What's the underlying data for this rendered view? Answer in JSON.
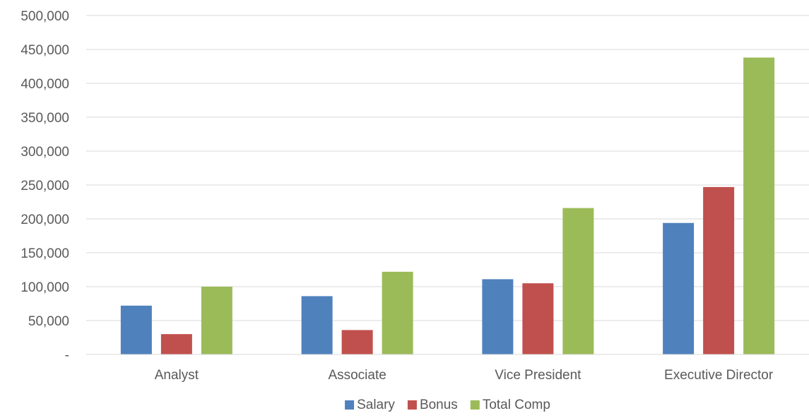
{
  "chart_data": {
    "type": "bar",
    "categories": [
      "Analyst",
      "Associate",
      "Vice President",
      "Executive Director"
    ],
    "series": [
      {
        "name": "Salary",
        "color": "#4f81bd",
        "values": [
          72000,
          86000,
          111000,
          194000
        ]
      },
      {
        "name": "Bonus",
        "color": "#c0504d",
        "values": [
          30000,
          36000,
          105000,
          247000
        ]
      },
      {
        "name": "Total Comp",
        "color": "#9bbb59",
        "values": [
          100000,
          122000,
          216000,
          438000
        ]
      }
    ],
    "y_ticks": [
      "-",
      "50,000",
      "100,000",
      "150,000",
      "200,000",
      "250,000",
      "300,000",
      "350,000",
      "400,000",
      "450,000",
      "500,000"
    ],
    "ylim": [
      0,
      500000
    ],
    "ytick_step": 50000,
    "grid": true,
    "legend_position": "bottom",
    "title": "",
    "xlabel": "",
    "ylabel": ""
  }
}
